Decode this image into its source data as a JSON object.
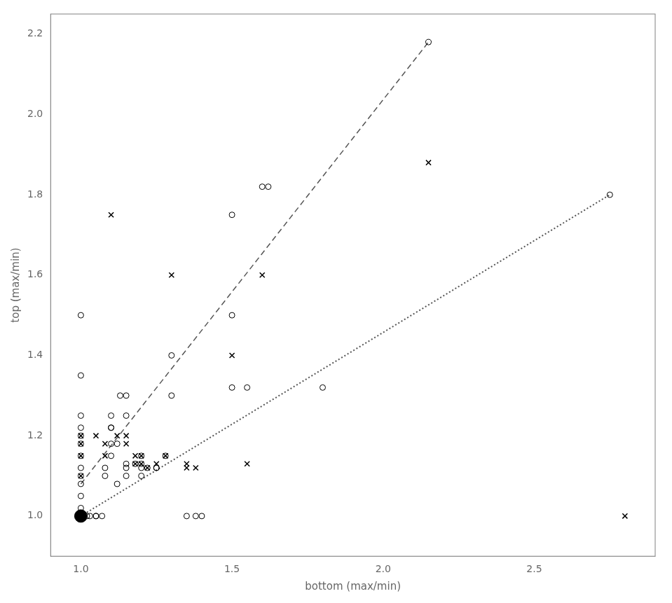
{
  "chart_data": {
    "type": "scatter",
    "xlabel": "bottom (max/min)",
    "ylabel": "top (max/min)",
    "xlim": [
      0.9,
      2.9
    ],
    "ylim": [
      0.9,
      2.25
    ],
    "xticks": [
      {
        "value": 1.0,
        "label": "1.0"
      },
      {
        "value": 1.5,
        "label": "1.5"
      },
      {
        "value": 2.0,
        "label": "2.0"
      },
      {
        "value": 2.5,
        "label": "2.5"
      }
    ],
    "yticks": [
      {
        "value": 1.0,
        "label": "1.0"
      },
      {
        "value": 1.2,
        "label": "1.2"
      },
      {
        "value": 1.4,
        "label": "1.4"
      },
      {
        "value": 1.6,
        "label": "1.6"
      },
      {
        "value": 1.8,
        "label": "1.8"
      },
      {
        "value": 2.0,
        "label": "2.0"
      },
      {
        "value": 2.2,
        "label": "2.2"
      }
    ],
    "grid": false,
    "series": [
      {
        "type": "scatter",
        "marker": "open_circle",
        "color": "#000000",
        "x": [
          1.0,
          1.0,
          1.0,
          1.0,
          1.0,
          1.0,
          1.0,
          1.0,
          1.0,
          1.0,
          1.0,
          1.0,
          1.0,
          1.0,
          1.0,
          1.0,
          1.02,
          1.03,
          1.05,
          1.05,
          1.07,
          1.08,
          1.08,
          1.1,
          1.1,
          1.1,
          1.1,
          1.1,
          1.12,
          1.12,
          1.13,
          1.15,
          1.15,
          1.15,
          1.15,
          1.15,
          1.18,
          1.2,
          1.2,
          1.2,
          1.2,
          1.22,
          1.25,
          1.25,
          1.28,
          1.3,
          1.3,
          1.35,
          1.38,
          1.4,
          1.5,
          1.5,
          1.5,
          1.55,
          1.6,
          1.62,
          1.8,
          2.15,
          2.75
        ],
        "values": [
          1.5,
          1.35,
          1.25,
          1.22,
          1.2,
          1.18,
          1.15,
          1.12,
          1.1,
          1.08,
          1.05,
          1.02,
          1.0,
          1.0,
          1.0,
          1.0,
          1.0,
          1.0,
          1.0,
          1.0,
          1.0,
          1.12,
          1.1,
          1.25,
          1.22,
          1.22,
          1.18,
          1.15,
          1.18,
          1.08,
          1.3,
          1.3,
          1.25,
          1.13,
          1.12,
          1.1,
          1.13,
          1.15,
          1.13,
          1.12,
          1.1,
          1.12,
          1.12,
          1.12,
          1.15,
          1.4,
          1.3,
          1.0,
          1.0,
          1.0,
          1.75,
          1.5,
          1.32,
          1.32,
          1.82,
          1.82,
          1.32,
          2.18,
          1.8
        ]
      },
      {
        "type": "scatter",
        "marker": "x",
        "color": "#000000",
        "x": [
          1.0,
          1.0,
          1.0,
          1.0,
          1.05,
          1.08,
          1.08,
          1.1,
          1.12,
          1.15,
          1.15,
          1.18,
          1.18,
          1.2,
          1.2,
          1.22,
          1.25,
          1.28,
          1.3,
          1.35,
          1.35,
          1.38,
          1.5,
          1.55,
          1.6,
          2.15,
          2.8
        ],
        "values": [
          1.2,
          1.18,
          1.15,
          1.1,
          1.2,
          1.18,
          1.15,
          1.75,
          1.2,
          1.2,
          1.18,
          1.15,
          1.13,
          1.15,
          1.13,
          1.12,
          1.13,
          1.15,
          1.6,
          1.13,
          1.12,
          1.12,
          1.4,
          1.13,
          1.6,
          1.88,
          1.0
        ]
      },
      {
        "type": "scatter",
        "marker": "big_dot",
        "color": "#000000",
        "x": [
          1.0
        ],
        "values": [
          1.0
        ]
      },
      {
        "type": "line",
        "line_style": "dashed",
        "color": "#555555",
        "x": [
          1.0,
          2.15
        ],
        "values": [
          1.08,
          2.18
        ]
      },
      {
        "type": "line",
        "line_style": "dotted",
        "color": "#555555",
        "x": [
          1.0,
          2.75
        ],
        "values": [
          1.0,
          1.8
        ]
      }
    ]
  }
}
